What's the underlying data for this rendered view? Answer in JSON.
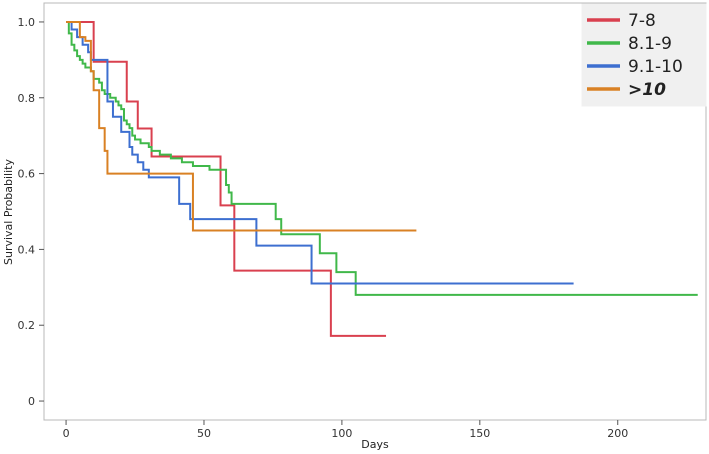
{
  "chart_data": {
    "type": "line",
    "title": "",
    "xlabel": "Days",
    "ylabel": "Survival Probability",
    "xlim": [
      -8,
      232
    ],
    "ylim": [
      -0.05,
      1.05
    ],
    "xticks": [
      0,
      50,
      100,
      150,
      200
    ],
    "yticks": [
      0,
      0.2,
      0.4,
      0.6,
      0.8,
      1.0
    ],
    "xtick_labels": [
      "0",
      "50",
      "100",
      "150",
      "200"
    ],
    "ytick_labels": [
      "0",
      "0.2",
      "0.4",
      "0.6",
      "0.8",
      "1.0"
    ],
    "grid": false,
    "step": true,
    "legend": {
      "position": "top-right"
    },
    "series": [
      {
        "name": "7-8",
        "color": "#d9404f",
        "x": [
          0,
          10,
          22,
          26,
          31,
          56,
          61,
          96,
          116
        ],
        "y": [
          1.0,
          0.895,
          0.79,
          0.719,
          0.645,
          0.516,
          0.344,
          0.172,
          0.172
        ]
      },
      {
        "name": "8.1-9",
        "color": "#40b84a",
        "x": [
          0,
          1,
          2,
          3,
          4,
          5,
          6,
          7,
          9,
          10,
          12,
          13,
          14,
          16,
          18,
          19,
          20,
          21,
          22,
          23,
          24,
          25,
          27,
          28,
          30,
          31,
          34,
          38,
          42,
          46,
          52,
          58,
          59,
          60,
          62,
          70,
          76,
          78,
          92,
          98,
          105,
          229
        ],
        "y": [
          1.0,
          0.97,
          0.94,
          0.925,
          0.91,
          0.9,
          0.89,
          0.88,
          0.87,
          0.85,
          0.84,
          0.82,
          0.81,
          0.8,
          0.79,
          0.78,
          0.77,
          0.74,
          0.73,
          0.72,
          0.7,
          0.69,
          0.68,
          0.68,
          0.67,
          0.66,
          0.65,
          0.64,
          0.63,
          0.62,
          0.61,
          0.57,
          0.55,
          0.52,
          0.52,
          0.52,
          0.48,
          0.44,
          0.39,
          0.34,
          0.28,
          0.28
        ]
      },
      {
        "name": "9.1-10",
        "color": "#3d6fd0",
        "x": [
          0,
          2,
          4,
          6,
          8,
          9,
          13,
          15,
          17,
          20,
          23,
          24,
          26,
          28,
          30,
          31,
          41,
          45,
          58,
          60,
          69,
          89,
          184
        ],
        "y": [
          1.0,
          0.98,
          0.96,
          0.94,
          0.92,
          0.9,
          0.9,
          0.79,
          0.75,
          0.71,
          0.67,
          0.65,
          0.63,
          0.61,
          0.59,
          0.59,
          0.52,
          0.48,
          0.48,
          0.48,
          0.41,
          0.31,
          0.31
        ]
      },
      {
        "name": ">10",
        "color": "#d98124",
        "x": [
          0,
          5,
          7,
          9,
          10,
          12,
          14,
          15,
          44,
          46,
          127
        ],
        "y": [
          1.0,
          0.96,
          0.95,
          0.87,
          0.82,
          0.72,
          0.66,
          0.6,
          0.6,
          0.45,
          0.45
        ]
      }
    ]
  }
}
